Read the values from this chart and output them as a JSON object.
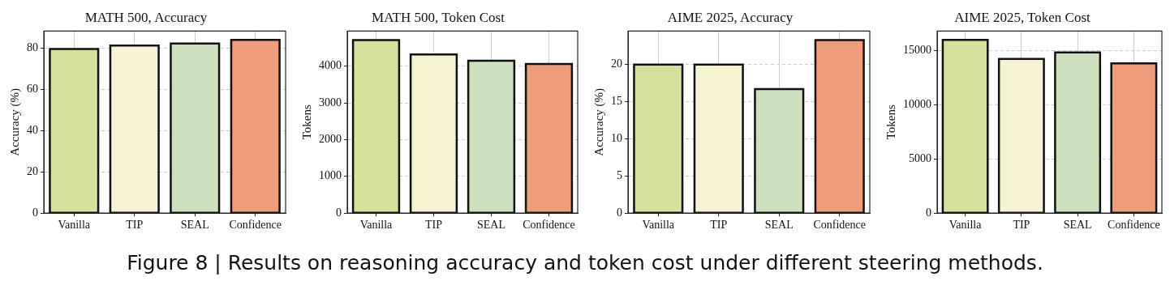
{
  "chart_data": [
    {
      "type": "bar",
      "title": "MATH 500, Accuracy",
      "ylabel": "Accuracy (%)",
      "categories": [
        "Vanilla",
        "TIP",
        "SEAL",
        "Confidence"
      ],
      "values": [
        79.6,
        81.3,
        82.3,
        84.0
      ],
      "colors": [
        "#d5e09a",
        "#f6f3d2",
        "#cde0bd",
        "#ef9c7a"
      ],
      "ylim": [
        0,
        88.3
      ],
      "yticks": [
        0,
        20,
        40,
        60,
        80
      ],
      "grid": true,
      "annotations": [
        "Figure 8 | Results on reasoning accuracy and token cost under different steering methods."
      ]
    },
    {
      "type": "bar",
      "title": "MATH 500, Token Cost",
      "ylabel": "Tokens",
      "categories": [
        "Vanilla",
        "TIP",
        "SEAL",
        "Confidence"
      ],
      "values": [
        4710,
        4320,
        4150,
        4060
      ],
      "colors": [
        "#d5e09a",
        "#f6f3d2",
        "#cde0bd",
        "#ef9c7a"
      ],
      "ylim": [
        0,
        4954
      ],
      "yticks": [
        0,
        1000,
        2000,
        3000,
        4000
      ],
      "grid": true
    },
    {
      "type": "bar",
      "title": "AIME 2025, Accuracy",
      "ylabel": "Accuracy (%)",
      "categories": [
        "Vanilla",
        "TIP",
        "SEAL",
        "Confidence"
      ],
      "values": [
        20.0,
        20.0,
        16.7,
        23.3
      ],
      "colors": [
        "#d5e09a",
        "#f6f3d2",
        "#cde0bd",
        "#ef9c7a"
      ],
      "ylim": [
        0,
        24.5
      ],
      "yticks": [
        0,
        5,
        10,
        15,
        20
      ],
      "grid": true
    },
    {
      "type": "bar",
      "title": "AIME 2025, Token Cost",
      "ylabel": "Tokens",
      "categories": [
        "Vanilla",
        "TIP",
        "SEAL",
        "Confidence"
      ],
      "values": [
        15950,
        14200,
        14800,
        13800
      ],
      "colors": [
        "#d5e09a",
        "#f6f3d2",
        "#cde0bd",
        "#ef9c7a"
      ],
      "ylim": [
        0,
        16763
      ],
      "yticks": [
        0,
        5000,
        10000,
        15000
      ],
      "grid": true
    }
  ]
}
